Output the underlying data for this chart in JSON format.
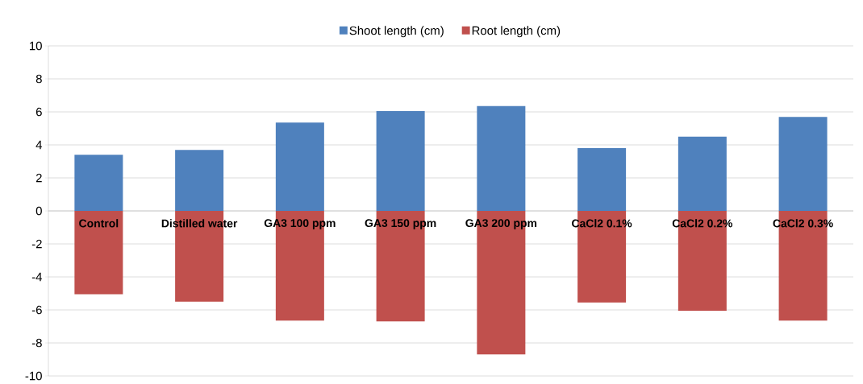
{
  "chart_data": {
    "type": "bar",
    "stacked": true,
    "categories": [
      "Control",
      "Distilled water",
      "GA3 100 ppm",
      "GA3 150 ppm",
      "GA3 200 ppm",
      "CaCl2 0.1%",
      "CaCl2 0.2%",
      "CaCl2 0.3%"
    ],
    "series": [
      {
        "name": "Shoot length (cm)",
        "color": "#4f81bd",
        "values": [
          3.4,
          3.7,
          5.35,
          6.05,
          6.35,
          3.8,
          4.5,
          5.7
        ]
      },
      {
        "name": "Root length (cm)",
        "color": "#c0504d",
        "values": [
          -5.05,
          -5.5,
          -6.65,
          -6.7,
          -8.7,
          -5.55,
          -6.05,
          -6.65
        ]
      }
    ],
    "ylim": [
      -10,
      10
    ],
    "yticks": [
      -10,
      -8,
      -6,
      -4,
      -2,
      0,
      2,
      4,
      6,
      8,
      10
    ],
    "grid": "y",
    "legend": "top"
  }
}
